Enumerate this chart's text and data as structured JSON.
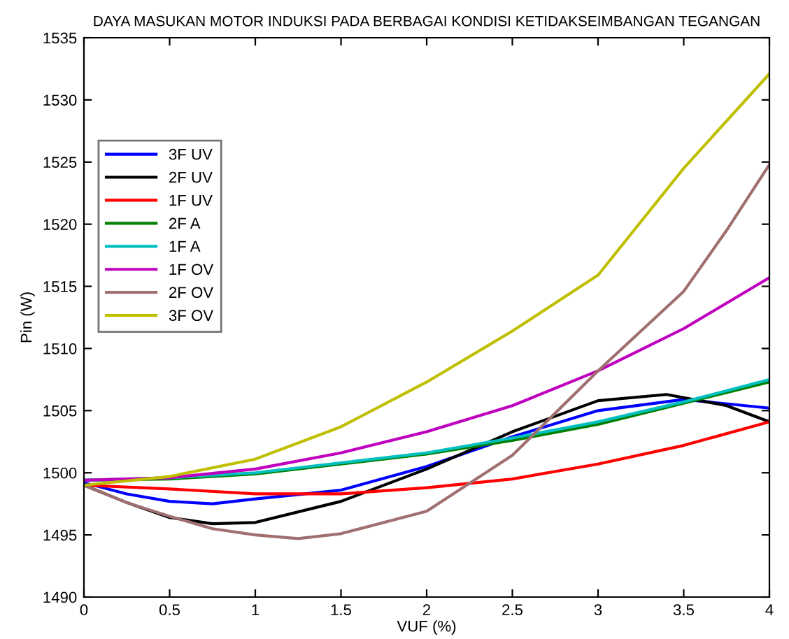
{
  "chart_data": {
    "type": "line",
    "title": "DAYA MASUKAN MOTOR INDUKSI PADA BERBAGAI KONDISI KETIDAKSEIMBANGAN TEGANGAN",
    "xlabel": "VUF (%)",
    "ylabel": "Pin (W)",
    "xlim": [
      0,
      4
    ],
    "xticks": [
      0,
      0.5,
      1,
      1.5,
      2,
      2.5,
      3,
      3.5,
      4
    ],
    "ylim": [
      1490,
      1535
    ],
    "yticks": [
      1490,
      1495,
      1500,
      1505,
      1510,
      1515,
      1520,
      1525,
      1530,
      1535
    ],
    "grid": false,
    "legend": "top left",
    "marker": "none",
    "line_style": "solid",
    "series": [
      {
        "name": "3F UV",
        "color": "#0000ff",
        "x": [
          0,
          0.25,
          0.5,
          0.75,
          1,
          1.5,
          2,
          2.5,
          3,
          3.5,
          4
        ],
        "values": [
          1499.2,
          1498.3,
          1497.7,
          1497.5,
          1497.9,
          1498.6,
          1500.5,
          1502.9,
          1505.0,
          1505.9,
          1505.2
        ]
      },
      {
        "name": "2F UV",
        "color": "#000000",
        "x": [
          0,
          0.25,
          0.5,
          0.75,
          1,
          1.5,
          2,
          2.5,
          3,
          3.4,
          3.75,
          4
        ],
        "values": [
          1499.0,
          1497.6,
          1496.4,
          1495.9,
          1496.0,
          1497.7,
          1500.3,
          1503.3,
          1505.8,
          1506.3,
          1505.4,
          1504.1
        ]
      },
      {
        "name": "1F UV",
        "color": "#ff0000",
        "x": [
          0,
          0.5,
          1,
          1.5,
          2,
          2.5,
          3,
          3.5,
          4
        ],
        "values": [
          1499.0,
          1498.7,
          1498.3,
          1498.3,
          1498.8,
          1499.5,
          1500.7,
          1502.2,
          1504.1
        ]
      },
      {
        "name": "2F A",
        "color": "#008000",
        "x": [
          0,
          0.5,
          1,
          1.5,
          2,
          2.5,
          3,
          3.5,
          4
        ],
        "values": [
          1499.4,
          1499.5,
          1499.9,
          1500.7,
          1501.5,
          1502.6,
          1503.9,
          1505.6,
          1507.3
        ]
      },
      {
        "name": "1F A",
        "color": "#00bfbf",
        "x": [
          0,
          0.5,
          1,
          1.5,
          2,
          2.5,
          3,
          3.5,
          4
        ],
        "values": [
          1499.4,
          1499.6,
          1500.0,
          1500.8,
          1501.6,
          1502.8,
          1504.1,
          1505.7,
          1507.5
        ]
      },
      {
        "name": "1F OV",
        "color": "#bf00bf",
        "x": [
          0,
          0.5,
          1,
          1.5,
          2,
          2.5,
          3,
          3.5,
          4
        ],
        "values": [
          1499.4,
          1499.6,
          1500.3,
          1501.6,
          1503.3,
          1505.4,
          1508.2,
          1511.6,
          1515.7
        ]
      },
      {
        "name": "2F OV",
        "color": "#a07070",
        "x": [
          0,
          0.25,
          0.5,
          0.75,
          1,
          1.25,
          1.5,
          2,
          2.5,
          3,
          3.5,
          3.75,
          4
        ],
        "values": [
          1499.0,
          1497.6,
          1496.5,
          1495.5,
          1495.0,
          1494.7,
          1495.1,
          1496.9,
          1501.4,
          1508.2,
          1514.6,
          1519.5,
          1524.8
        ]
      },
      {
        "name": "3F OV",
        "color": "#bfbf00",
        "x": [
          0,
          0.5,
          1,
          1.5,
          2,
          2.5,
          3,
          3.5,
          4
        ],
        "values": [
          1499.0,
          1499.7,
          1501.1,
          1503.7,
          1507.3,
          1511.4,
          1515.9,
          1524.5,
          1532.1
        ]
      }
    ]
  }
}
